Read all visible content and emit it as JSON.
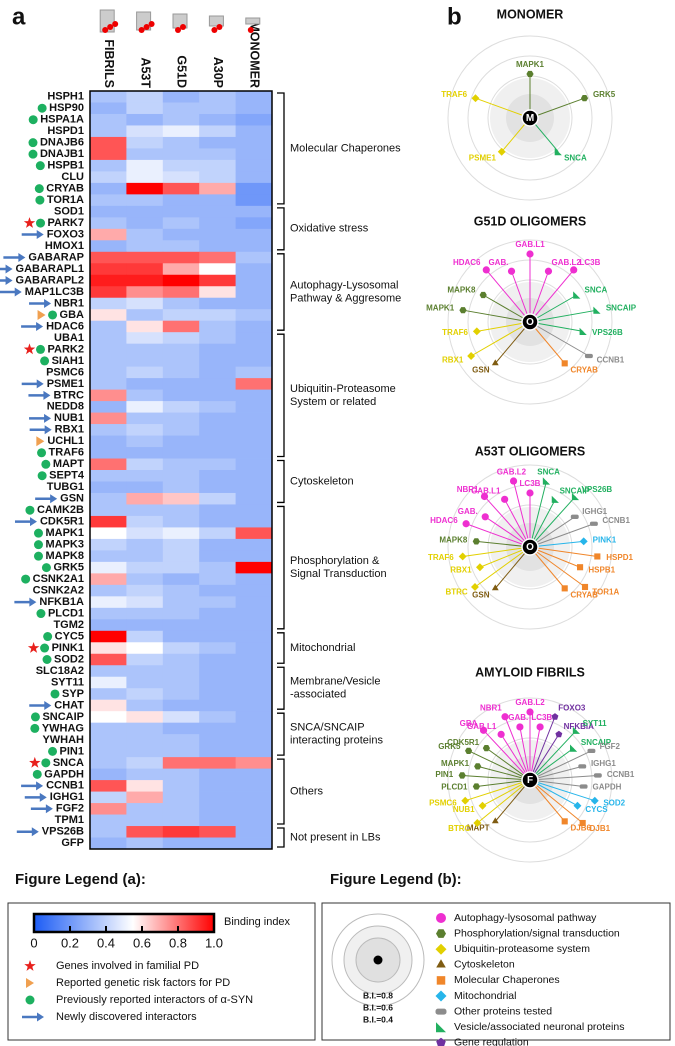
{
  "panel_labels": [
    "a",
    "b"
  ],
  "chart_data": {
    "type": "heatmap",
    "columns": [
      "FIBRILS",
      "A53T",
      "G51D",
      "A30P",
      "MONOMER"
    ],
    "rows": [
      "HSPH1",
      "HSP90",
      "HSPA1A",
      "HSPD1",
      "DNAJB6",
      "DNAJB1",
      "HSPB1",
      "CLU",
      "CRYAB",
      "TOR1A",
      "SOD1",
      "PARK7",
      "FOXO3",
      "HMOX1",
      "GABARAP",
      "GABARAPL1",
      "GABARAPL2",
      "MAP1LC3B",
      "NBR1",
      "GBA",
      "HDAC6",
      "UBA1",
      "PARK2",
      "SIAH1",
      "PSMC6",
      "PSME1",
      "BTRC",
      "NEDD8",
      "NUB1",
      "RBX1",
      "UCHL1",
      "TRAF6",
      "MAPT",
      "SEPT4",
      "TUBG1",
      "GSN",
      "CAMK2B",
      "CDK5R1",
      "MAPK1",
      "MAPK3",
      "MAPK8",
      "GRK5",
      "CSNK2A1",
      "CSNK2A2",
      "NFKB1A",
      "PLCD1",
      "TGM2",
      "CYC5",
      "PINK1",
      "SOD2",
      "SLC18A2",
      "SYT11",
      "SYP",
      "CHAT",
      "SNCAIP",
      "YWHAG",
      "YWHAH",
      "PIN1",
      "SNCA",
      "GAPDH",
      "CCNB1",
      "IGHG1",
      "FGF2",
      "TPM1",
      "VPS26B",
      "GFP"
    ],
    "values": [
      [
        0.35,
        0.4,
        0.3,
        0.35,
        0.3
      ],
      [
        0.3,
        0.4,
        0.35,
        0.35,
        0.3
      ],
      [
        0.35,
        0.3,
        0.35,
        0.3,
        0.25
      ],
      [
        0.35,
        0.45,
        0.5,
        0.4,
        0.3
      ],
      [
        0.85,
        0.4,
        0.35,
        0.3,
        0.3
      ],
      [
        0.85,
        0.35,
        0.35,
        0.35,
        0.3
      ],
      [
        0.35,
        0.5,
        0.4,
        0.4,
        0.3
      ],
      [
        0.4,
        0.5,
        0.45,
        0.4,
        0.3
      ],
      [
        0.3,
        1.0,
        0.85,
        0.7,
        0.2
      ],
      [
        0.35,
        0.35,
        0.3,
        0.3,
        0.2
      ],
      [
        0.3,
        0.3,
        0.3,
        0.3,
        0.3
      ],
      [
        0.35,
        0.3,
        0.35,
        0.3,
        0.25
      ],
      [
        0.7,
        0.35,
        0.3,
        0.3,
        0.3
      ],
      [
        0.3,
        0.35,
        0.35,
        0.3,
        0.3
      ],
      [
        0.85,
        0.85,
        0.85,
        0.8,
        0.35
      ],
      [
        0.9,
        0.9,
        0.7,
        0.55,
        0.3
      ],
      [
        0.95,
        0.95,
        1.0,
        0.9,
        0.3
      ],
      [
        0.9,
        0.75,
        0.8,
        0.6,
        0.3
      ],
      [
        0.4,
        0.45,
        0.35,
        0.3,
        0.3
      ],
      [
        0.6,
        0.35,
        0.4,
        0.4,
        0.35
      ],
      [
        0.35,
        0.6,
        0.8,
        0.35,
        0.3
      ],
      [
        0.35,
        0.45,
        0.4,
        0.35,
        0.3
      ],
      [
        0.35,
        0.35,
        0.35,
        0.3,
        0.3
      ],
      [
        0.35,
        0.35,
        0.35,
        0.3,
        0.3
      ],
      [
        0.35,
        0.4,
        0.35,
        0.3,
        0.35
      ],
      [
        0.35,
        0.3,
        0.3,
        0.3,
        0.8
      ],
      [
        0.75,
        0.35,
        0.3,
        0.3,
        0.3
      ],
      [
        0.3,
        0.5,
        0.4,
        0.35,
        0.3
      ],
      [
        0.75,
        0.35,
        0.35,
        0.3,
        0.3
      ],
      [
        0.35,
        0.4,
        0.35,
        0.3,
        0.3
      ],
      [
        0.3,
        0.35,
        0.3,
        0.3,
        0.3
      ],
      [
        0.3,
        0.3,
        0.3,
        0.3,
        0.3
      ],
      [
        0.8,
        0.4,
        0.35,
        0.35,
        0.3
      ],
      [
        0.35,
        0.35,
        0.35,
        0.3,
        0.3
      ],
      [
        0.3,
        0.3,
        0.35,
        0.3,
        0.3
      ],
      [
        0.35,
        0.7,
        0.65,
        0.4,
        0.3
      ],
      [
        0.35,
        0.35,
        0.35,
        0.3,
        0.3
      ],
      [
        0.9,
        0.4,
        0.35,
        0.3,
        0.3
      ],
      [
        0.55,
        0.45,
        0.5,
        0.4,
        0.85
      ],
      [
        0.4,
        0.35,
        0.4,
        0.3,
        0.3
      ],
      [
        0.35,
        0.35,
        0.4,
        0.3,
        0.3
      ],
      [
        0.5,
        0.4,
        0.4,
        0.35,
        1.0
      ],
      [
        0.7,
        0.35,
        0.3,
        0.35,
        0.3
      ],
      [
        0.35,
        0.4,
        0.35,
        0.3,
        0.3
      ],
      [
        0.5,
        0.45,
        0.35,
        0.35,
        0.3
      ],
      [
        0.35,
        0.35,
        0.35,
        0.3,
        0.3
      ],
      [
        0.3,
        0.3,
        0.3,
        0.3,
        0.3
      ],
      [
        1.0,
        0.4,
        0.3,
        0.3,
        0.3
      ],
      [
        0.6,
        0.55,
        0.4,
        0.35,
        0.3
      ],
      [
        0.85,
        0.4,
        0.35,
        0.3,
        0.3
      ],
      [
        0.35,
        0.35,
        0.35,
        0.3,
        0.3
      ],
      [
        0.5,
        0.35,
        0.35,
        0.3,
        0.3
      ],
      [
        0.35,
        0.4,
        0.35,
        0.3,
        0.3
      ],
      [
        0.6,
        0.35,
        0.3,
        0.3,
        0.3
      ],
      [
        0.55,
        0.6,
        0.45,
        0.35,
        0.3
      ],
      [
        0.35,
        0.35,
        0.3,
        0.3,
        0.3
      ],
      [
        0.35,
        0.35,
        0.35,
        0.3,
        0.3
      ],
      [
        0.35,
        0.35,
        0.35,
        0.3,
        0.3
      ],
      [
        0.35,
        0.4,
        0.8,
        0.8,
        0.75
      ],
      [
        0.3,
        0.35,
        0.35,
        0.3,
        0.3
      ],
      [
        0.85,
        0.6,
        0.35,
        0.3,
        0.3
      ],
      [
        0.4,
        0.7,
        0.35,
        0.3,
        0.3
      ],
      [
        0.75,
        0.35,
        0.35,
        0.3,
        0.3
      ],
      [
        0.35,
        0.35,
        0.35,
        0.3,
        0.3
      ],
      [
        0.35,
        0.85,
        0.9,
        0.85,
        0.3
      ],
      [
        0.3,
        0.35,
        0.3,
        0.3,
        0.3
      ]
    ],
    "clim": [
      0,
      1
    ],
    "colorbar_ticks": [
      0,
      0.2,
      0.4,
      0.6,
      0.8,
      {
        "value": 1,
        "label": "1.0"
      }
    ],
    "colorbar_label": "Binding index",
    "colors": [
      "#1c5cf5",
      "#ffffff",
      "#ff0000"
    ],
    "row_markers": [
      [],
      [
        "circle"
      ],
      [
        "circle"
      ],
      [],
      [
        "circle"
      ],
      [
        "circle"
      ],
      [
        "circle"
      ],
      [],
      [
        "circle"
      ],
      [
        "circle"
      ],
      [],
      [
        "star",
        "circle"
      ],
      [
        "arrow"
      ],
      [],
      [
        "arrow"
      ],
      [
        "arrow"
      ],
      [
        "arrow"
      ],
      [
        "arrow"
      ],
      [
        "arrow"
      ],
      [
        "triangle",
        "circle"
      ],
      [
        "arrow"
      ],
      [],
      [
        "star",
        "circle"
      ],
      [
        "circle"
      ],
      [],
      [
        "arrow"
      ],
      [
        "arrow"
      ],
      [],
      [
        "arrow"
      ],
      [
        "arrow"
      ],
      [
        "triangle"
      ],
      [
        "circle"
      ],
      [
        "circle"
      ],
      [
        "circle"
      ],
      [],
      [
        "arrow"
      ],
      [
        "circle"
      ],
      [
        "arrow"
      ],
      [
        "circle"
      ],
      [
        "circle"
      ],
      [
        "circle"
      ],
      [
        "circle"
      ],
      [
        "circle"
      ],
      [],
      [
        "arrow"
      ],
      [
        "circle"
      ],
      [],
      [
        "circle"
      ],
      [
        "star",
        "circle"
      ],
      [
        "circle"
      ],
      [],
      [],
      [
        "circle"
      ],
      [
        "arrow"
      ],
      [
        "circle"
      ],
      [
        "circle"
      ],
      [],
      [
        "circle"
      ],
      [
        "star",
        "circle"
      ],
      [
        "circle"
      ],
      [
        "arrow"
      ],
      [
        "arrow"
      ],
      [
        "arrow"
      ],
      [],
      [
        "arrow"
      ],
      []
    ],
    "groups": [
      {
        "label": [
          "Molecular Chaperones"
        ],
        "first": "HSPH1",
        "last": "TOR1A"
      },
      {
        "label": [
          "Oxidative stress"
        ],
        "first": "SOD1",
        "last": "HMOX1"
      },
      {
        "label": [
          "Autophagy-Lysosomal",
          "Pathway & Aggresome"
        ],
        "first": "GABARAP",
        "last": "HDAC6"
      },
      {
        "label": [
          "Ubiquitin-Proteasome",
          "System or related"
        ],
        "first": "UBA1",
        "last": "TRAF6"
      },
      {
        "label": [
          "Cytoskeleton"
        ],
        "first": "MAPT",
        "last": "GSN"
      },
      {
        "label": [
          "Phosphorylation &",
          "Signal Transduction"
        ],
        "first": "CAMK2B",
        "last": "TGM2"
      },
      {
        "label": [
          "Mitochondrial"
        ],
        "first": "CYC5",
        "last": "SOD2"
      },
      {
        "label": [
          "Membrane/Vesicle",
          "-associated"
        ],
        "first": "SLC18A2",
        "last": "CHAT"
      },
      {
        "label": [
          "SNCA/SNCAIP",
          "interacting proteins"
        ],
        "first": "SNCAIP",
        "last": "PIN1"
      },
      {
        "label": [
          "Others"
        ],
        "first": "SNCA",
        "last": "TPM1"
      },
      {
        "label": [
          "Not present in LBs"
        ],
        "first": "VPS26B",
        "last": "GFP"
      }
    ]
  },
  "diagrams": [
    {
      "title": "MONOMER",
      "center": "M",
      "nodes": [
        {
          "label": "PSME1",
          "color": "#e2d000"
        },
        {
          "label": "TRAF6",
          "color": "#e2d000"
        },
        {
          "label": "MAPK1",
          "color": "#5b7f2f"
        },
        {
          "label": "GRK5",
          "color": "#5b7f2f"
        },
        {
          "label": "SNCA",
          "color": "#22b060"
        }
      ]
    },
    {
      "title": "G51D OLIGOMERS",
      "center": "O",
      "nodes": [
        {
          "label": "GSN",
          "color": "#7f5c12"
        },
        {
          "label": "RBX1",
          "color": "#e2d000"
        },
        {
          "label": "TRAF6",
          "color": "#e2d000"
        },
        {
          "label": "MAPK1",
          "color": "#5b7f2f"
        },
        {
          "label": "MAPK8",
          "color": "#5b7f2f"
        },
        {
          "label": "HDAC6",
          "color": "#ee2fd0"
        },
        {
          "label": "GAB.",
          "color": "#ee2fd0"
        },
        {
          "label": "GAB.L1",
          "color": "#ee2fd0"
        },
        {
          "label": "GAB.L2",
          "color": "#ee2fd0"
        },
        {
          "label": "LC3B",
          "color": "#ee2fd0"
        },
        {
          "label": "SNCA",
          "color": "#22b060"
        },
        {
          "label": "SNCAIP",
          "color": "#22b060"
        },
        {
          "label": "VPS26B",
          "color": "#22b060"
        },
        {
          "label": "CCNB1",
          "color": "#8c8c8c"
        },
        {
          "label": "CRYAB",
          "color": "#f0862a"
        }
      ]
    },
    {
      "title": "A53T OLIGOMERS",
      "center": "O",
      "nodes": [
        {
          "label": "GSN",
          "color": "#7f5c12"
        },
        {
          "label": "BTRC",
          "color": "#e2d000"
        },
        {
          "label": "RBX1",
          "color": "#e2d000"
        },
        {
          "label": "TRAF6",
          "color": "#e2d000"
        },
        {
          "label": "MAPK8",
          "color": "#5b7f2f"
        },
        {
          "label": "HDAC6",
          "color": "#ee2fd0"
        },
        {
          "label": "GAB.",
          "color": "#ee2fd0"
        },
        {
          "label": "NBR1",
          "color": "#ee2fd0"
        },
        {
          "label": "GAB.L1",
          "color": "#ee2fd0"
        },
        {
          "label": "GAB.L2",
          "color": "#ee2fd0"
        },
        {
          "label": "LC3B",
          "color": "#ee2fd0"
        },
        {
          "label": "SNCA",
          "color": "#22b060"
        },
        {
          "label": "SNCAIP",
          "color": "#22b060"
        },
        {
          "label": "VPS26B",
          "color": "#22b060"
        },
        {
          "label": "IGHG1",
          "color": "#8c8c8c"
        },
        {
          "label": "CCNB1",
          "color": "#8c8c8c"
        },
        {
          "label": "PINK1",
          "color": "#27b5ea"
        },
        {
          "label": "HSPD1",
          "color": "#f0862a"
        },
        {
          "label": "HSPB1",
          "color": "#f0862a"
        },
        {
          "label": "TOR1A",
          "color": "#f0862a"
        },
        {
          "label": "CRYAB",
          "color": "#f0862a"
        }
      ]
    },
    {
      "title": "AMYLOID FIBRILS",
      "center": "F",
      "nodes": [
        {
          "label": "MAPT",
          "color": "#7f5c12"
        },
        {
          "label": "BTRC",
          "color": "#e2d000"
        },
        {
          "label": "NUB1",
          "color": "#e2d000"
        },
        {
          "label": "PSMC6",
          "color": "#e2d000"
        },
        {
          "label": "PLCD1",
          "color": "#5b7f2f"
        },
        {
          "label": "PIN1",
          "color": "#5b7f2f"
        },
        {
          "label": "MAPK1",
          "color": "#5b7f2f"
        },
        {
          "label": "GRK5",
          "color": "#5b7f2f"
        },
        {
          "label": "CDK5R1",
          "color": "#5b7f2f"
        },
        {
          "label": "GBA",
          "color": "#ee2fd0"
        },
        {
          "label": "GAB.L1",
          "color": "#ee2fd0"
        },
        {
          "label": "NBR1",
          "color": "#ee2fd0"
        },
        {
          "label": "GAB.",
          "color": "#ee2fd0"
        },
        {
          "label": "GAB.L2",
          "color": "#ee2fd0"
        },
        {
          "label": "LC3B",
          "color": "#ee2fd0"
        },
        {
          "label": "FOXO3",
          "color": "#7030a0"
        },
        {
          "label": "NFKBIA",
          "color": "#7030a0"
        },
        {
          "label": "SYT11",
          "color": "#22b060"
        },
        {
          "label": "SNCAIP",
          "color": "#22b060"
        },
        {
          "label": "FGF2",
          "color": "#8c8c8c"
        },
        {
          "label": "IGHG1",
          "color": "#8c8c8c"
        },
        {
          "label": "CCNB1",
          "color": "#8c8c8c"
        },
        {
          "label": "GAPDH",
          "color": "#8c8c8c"
        },
        {
          "label": "SOD2",
          "color": "#27b5ea"
        },
        {
          "label": "CYCS",
          "color": "#27b5ea"
        },
        {
          "label": "DJB1",
          "color": "#f0862a"
        },
        {
          "label": "DJB6",
          "color": "#f0862a"
        }
      ]
    }
  ],
  "legend_a": {
    "title": "Figure Legend (a):",
    "items": [
      {
        "marker": "star",
        "label": "Genes involved in familial PD"
      },
      {
        "marker": "triangle",
        "label": "Reported genetic risk factors for PD"
      },
      {
        "marker": "circle",
        "label": "Previously reported interactors of α-SYN"
      },
      {
        "marker": "arrow",
        "label": "Newly discovered interactors"
      }
    ]
  },
  "legend_b": {
    "title": "Figure Legend (b):",
    "rings": [
      "B.I.=0.8",
      "B.I.=0.6",
      "B.I.=0.4"
    ],
    "items": [
      {
        "shape": "circle",
        "color": "#ee2fd0",
        "label": "Autophagy-lysosomal pathway"
      },
      {
        "shape": "hexagon",
        "color": "#5b7f2f",
        "label": "Phosphorylation/signal transduction"
      },
      {
        "shape": "diamond",
        "color": "#e2d000",
        "label": "Ubiquitin-proteasome system"
      },
      {
        "shape": "triangle",
        "color": "#7f5c12",
        "label": "Cytoskeleton"
      },
      {
        "shape": "square",
        "color": "#f0862a",
        "label": "Molecular Chaperones"
      },
      {
        "shape": "diamond",
        "color": "#27b5ea",
        "label": "Mitochondrial"
      },
      {
        "shape": "roundrect",
        "color": "#8c8c8c",
        "label": "Other proteins tested"
      },
      {
        "shape": "rtriangle",
        "color": "#22b060",
        "label": "Vesicle/associated neuronal proteins"
      },
      {
        "shape": "pentagon",
        "color": "#7030a0",
        "label": "Gene regulation"
      }
    ]
  }
}
